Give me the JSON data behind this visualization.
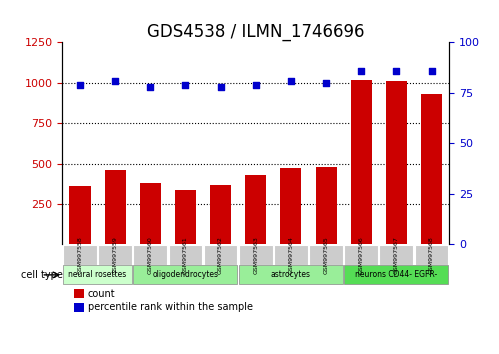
{
  "title": "GDS4538 / ILMN_1746696",
  "samples": [
    "GSM997558",
    "GSM997559",
    "GSM997560",
    "GSM997561",
    "GSM997562",
    "GSM997563",
    "GSM997564",
    "GSM997565",
    "GSM997566",
    "GSM997567",
    "GSM997568"
  ],
  "counts": [
    360,
    460,
    380,
    335,
    365,
    430,
    470,
    480,
    1020,
    1010,
    930
  ],
  "percentiles": [
    79,
    81,
    78,
    79,
    78,
    79,
    81,
    80,
    86,
    86,
    86
  ],
  "cell_types": [
    {
      "label": "neural rosettes",
      "start": 0,
      "end": 2,
      "color": "#ccffcc"
    },
    {
      "label": "oligodendrocytes",
      "start": 2,
      "end": 5,
      "color": "#99ee99"
    },
    {
      "label": "astrocytes",
      "start": 5,
      "end": 8,
      "color": "#99ee99"
    },
    {
      "label": "neurons CD44- EGFR-",
      "start": 8,
      "end": 11,
      "color": "#55dd55"
    }
  ],
  "bar_color": "#cc0000",
  "dot_color": "#0000cc",
  "ylim_left": [
    0,
    1250
  ],
  "ylim_right": [
    0,
    100
  ],
  "yticks_left": [
    250,
    500,
    750,
    1000,
    1250
  ],
  "yticks_right": [
    0,
    25,
    50,
    75,
    100
  ],
  "grid_lines": [
    250,
    500,
    750,
    1000
  ],
  "legend_count_color": "#cc0000",
  "legend_pct_color": "#0000cc",
  "xlabel_color": "#cc0000",
  "ylabel_right_color": "#0000cc",
  "sample_box_color": "#cccccc",
  "title_fontsize": 12
}
